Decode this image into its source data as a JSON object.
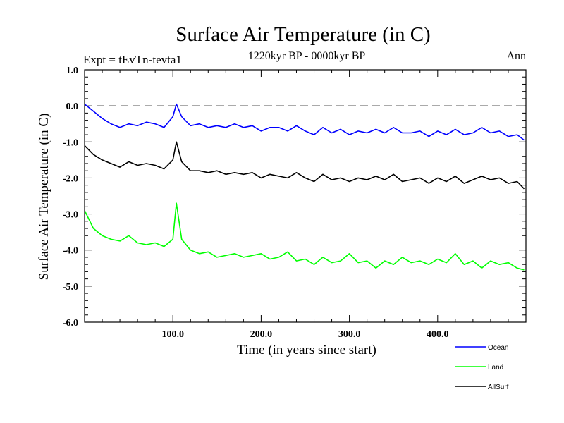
{
  "header": {
    "title": "Surface Air Temperature (in C)",
    "expt": "Expt = tEvTn-tevta1",
    "period": "1220kyr BP - 0000kyr BP",
    "season": "Ann"
  },
  "chart_data": {
    "type": "line",
    "title": "Surface Air Temperature (in C)",
    "xlabel": "Time (in years since start)",
    "ylabel": "Surface Air Temperature (in C)",
    "xlim": [
      0,
      500
    ],
    "ylim": [
      -6.0,
      1.0
    ],
    "x_ticks": [
      100,
      200,
      300,
      400
    ],
    "x_tick_labels": [
      "100.0",
      "200.0",
      "300.0",
      "400.0"
    ],
    "y_ticks": [
      1.0,
      0.0,
      -1.0,
      -2.0,
      -3.0,
      -4.0,
      -5.0,
      -6.0
    ],
    "y_tick_labels": [
      "1.0",
      "0.0",
      "-1.0",
      "-2.0",
      "-3.0",
      "-4.0",
      "-5.0",
      "-6.0"
    ],
    "reference_line": 0.0,
    "legend": "bottom-right",
    "series": [
      {
        "name": "Ocean",
        "color": "#0000ff",
        "x": [
          0,
          10,
          20,
          30,
          40,
          50,
          60,
          70,
          80,
          90,
          100,
          104,
          110,
          120,
          130,
          140,
          150,
          160,
          170,
          180,
          190,
          200,
          210,
          220,
          230,
          240,
          250,
          260,
          270,
          280,
          290,
          300,
          310,
          320,
          330,
          340,
          350,
          360,
          370,
          380,
          390,
          400,
          410,
          420,
          430,
          440,
          450,
          460,
          470,
          480,
          490,
          498
        ],
        "values": [
          0.05,
          -0.15,
          -0.35,
          -0.5,
          -0.6,
          -0.5,
          -0.55,
          -0.45,
          -0.5,
          -0.6,
          -0.3,
          0.05,
          -0.3,
          -0.55,
          -0.5,
          -0.6,
          -0.55,
          -0.6,
          -0.5,
          -0.6,
          -0.55,
          -0.7,
          -0.6,
          -0.6,
          -0.7,
          -0.55,
          -0.7,
          -0.8,
          -0.6,
          -0.75,
          -0.65,
          -0.8,
          -0.7,
          -0.75,
          -0.65,
          -0.75,
          -0.6,
          -0.75,
          -0.75,
          -0.7,
          -0.85,
          -0.7,
          -0.8,
          -0.65,
          -0.8,
          -0.75,
          -0.6,
          -0.75,
          -0.7,
          -0.85,
          -0.8,
          -0.95
        ]
      },
      {
        "name": "Land",
        "color": "#00ff00",
        "x": [
          0,
          10,
          20,
          30,
          40,
          50,
          60,
          70,
          80,
          90,
          100,
          104,
          110,
          120,
          130,
          140,
          150,
          160,
          170,
          180,
          190,
          200,
          210,
          220,
          230,
          240,
          250,
          260,
          270,
          280,
          290,
          300,
          310,
          320,
          330,
          340,
          350,
          360,
          370,
          380,
          390,
          400,
          410,
          420,
          430,
          440,
          450,
          460,
          470,
          480,
          490,
          498
        ],
        "values": [
          -2.9,
          -3.4,
          -3.6,
          -3.7,
          -3.75,
          -3.6,
          -3.8,
          -3.85,
          -3.8,
          -3.9,
          -3.7,
          -2.7,
          -3.7,
          -4.0,
          -4.1,
          -4.05,
          -4.2,
          -4.15,
          -4.1,
          -4.2,
          -4.15,
          -4.1,
          -4.25,
          -4.2,
          -4.05,
          -4.3,
          -4.25,
          -4.4,
          -4.2,
          -4.35,
          -4.3,
          -4.1,
          -4.35,
          -4.3,
          -4.5,
          -4.3,
          -4.4,
          -4.2,
          -4.35,
          -4.3,
          -4.4,
          -4.25,
          -4.35,
          -4.1,
          -4.4,
          -4.3,
          -4.5,
          -4.3,
          -4.4,
          -4.35,
          -4.5,
          -4.55
        ]
      },
      {
        "name": "AllSurf",
        "color": "#000000",
        "x": [
          0,
          10,
          20,
          30,
          40,
          50,
          60,
          70,
          80,
          90,
          100,
          104,
          110,
          120,
          130,
          140,
          150,
          160,
          170,
          180,
          190,
          200,
          210,
          220,
          230,
          240,
          250,
          260,
          270,
          280,
          290,
          300,
          310,
          320,
          330,
          340,
          350,
          360,
          370,
          380,
          390,
          400,
          410,
          420,
          430,
          440,
          450,
          460,
          470,
          480,
          490,
          498
        ],
        "values": [
          -1.1,
          -1.35,
          -1.5,
          -1.6,
          -1.7,
          -1.55,
          -1.65,
          -1.6,
          -1.65,
          -1.75,
          -1.5,
          -1.0,
          -1.55,
          -1.8,
          -1.8,
          -1.85,
          -1.8,
          -1.9,
          -1.85,
          -1.9,
          -1.85,
          -2.0,
          -1.9,
          -1.95,
          -2.0,
          -1.85,
          -2.0,
          -2.1,
          -1.9,
          -2.05,
          -2.0,
          -2.1,
          -2.0,
          -2.05,
          -1.95,
          -2.05,
          -1.9,
          -2.1,
          -2.05,
          -2.0,
          -2.15,
          -2.0,
          -2.1,
          -1.95,
          -2.15,
          -2.05,
          -1.95,
          -2.05,
          -2.0,
          -2.15,
          -2.1,
          -2.3
        ]
      }
    ]
  }
}
